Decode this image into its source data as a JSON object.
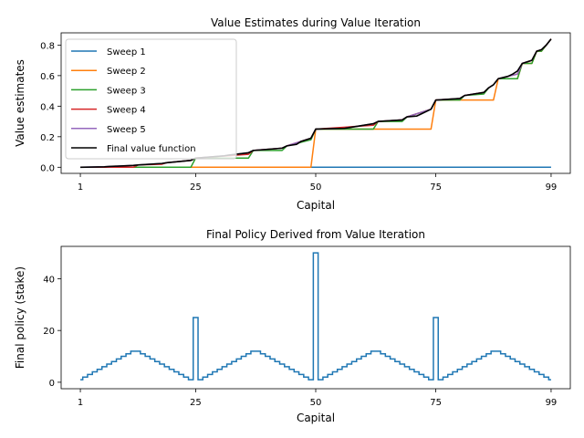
{
  "chart_data": [
    {
      "type": "line",
      "title": "Value Estimates during Value Iteration",
      "xlabel": "Capital",
      "ylabel": "Value estimates",
      "xlim": [
        -3,
        103
      ],
      "ylim": [
        -0.04,
        0.88
      ],
      "xticks": [
        1,
        25,
        50,
        75,
        99
      ],
      "yticks": [
        0.0,
        0.2,
        0.4,
        0.6,
        0.8
      ],
      "ytick_labels": [
        "0.0",
        "0.2",
        "0.4",
        "0.6",
        "0.8"
      ],
      "legend_position": "upper-left",
      "series": [
        {
          "name": "Sweep 1",
          "color": "#1f77b4",
          "x": [
            1,
            99
          ],
          "y": [
            0.0,
            0.0
          ]
        },
        {
          "name": "Sweep 2",
          "color": "#ff7f0e",
          "x": [
            1,
            49,
            50,
            74,
            75,
            87,
            88,
            92,
            93,
            95,
            96,
            97,
            98,
            99
          ],
          "y": [
            0.0,
            0.0,
            0.25,
            0.25,
            0.44,
            0.44,
            0.58,
            0.58,
            0.68,
            0.68,
            0.76,
            0.76,
            0.8,
            0.84
          ]
        },
        {
          "name": "Sweep 3",
          "color": "#2ca02c",
          "x": [
            1,
            24,
            25,
            36,
            37,
            43,
            44,
            49,
            50,
            62,
            63,
            68,
            69,
            74,
            75,
            80,
            81,
            85,
            86,
            87,
            88,
            92,
            93,
            95,
            96,
            97,
            98,
            99
          ],
          "y": [
            0.0,
            0.0,
            0.06,
            0.06,
            0.11,
            0.11,
            0.14,
            0.18,
            0.25,
            0.25,
            0.3,
            0.3,
            0.33,
            0.38,
            0.44,
            0.44,
            0.47,
            0.48,
            0.52,
            0.54,
            0.58,
            0.58,
            0.68,
            0.68,
            0.76,
            0.76,
            0.8,
            0.84
          ]
        },
        {
          "name": "Sweep 4",
          "color": "#d62728",
          "x": [
            1,
            12,
            13,
            18,
            19,
            24,
            25,
            36,
            37,
            43,
            44,
            49,
            50,
            62,
            63,
            68,
            69,
            74,
            75,
            80,
            81,
            85,
            86,
            87,
            88,
            92,
            93,
            95,
            96,
            97,
            98,
            99
          ],
          "y": [
            0.0,
            0.0,
            0.015,
            0.02,
            0.03,
            0.045,
            0.06,
            0.085,
            0.11,
            0.125,
            0.14,
            0.19,
            0.25,
            0.275,
            0.3,
            0.31,
            0.33,
            0.38,
            0.44,
            0.45,
            0.47,
            0.49,
            0.52,
            0.54,
            0.58,
            0.61,
            0.68,
            0.7,
            0.76,
            0.77,
            0.8,
            0.84
          ]
        },
        {
          "name": "Sweep 5",
          "color": "#9467bd",
          "x": [
            1,
            6,
            7,
            12,
            13,
            18,
            19,
            24,
            25,
            31,
            32,
            36,
            37,
            43,
            44,
            49,
            50,
            56,
            57,
            62,
            63,
            68,
            69,
            74,
            75,
            80,
            81,
            85,
            86,
            87,
            88,
            92,
            93,
            95,
            96,
            97,
            98,
            99
          ],
          "y": [
            0.0,
            0.003,
            0.005,
            0.012,
            0.015,
            0.025,
            0.03,
            0.045,
            0.06,
            0.075,
            0.08,
            0.095,
            0.11,
            0.125,
            0.14,
            0.19,
            0.25,
            0.255,
            0.26,
            0.285,
            0.3,
            0.31,
            0.33,
            0.38,
            0.44,
            0.45,
            0.47,
            0.49,
            0.52,
            0.54,
            0.58,
            0.61,
            0.68,
            0.7,
            0.76,
            0.77,
            0.8,
            0.84
          ]
        },
        {
          "name": "Final value function",
          "color": "#000000",
          "x": [
            1,
            6,
            7,
            12,
            13,
            18,
            19,
            24,
            25,
            31,
            32,
            36,
            37,
            43,
            44,
            46,
            47,
            49,
            50,
            56,
            57,
            62,
            63,
            68,
            69,
            71,
            72,
            74,
            75,
            80,
            81,
            85,
            86,
            87,
            88,
            90,
            91,
            92,
            93,
            95,
            96,
            97,
            98,
            99
          ],
          "y": [
            0.0,
            0.003,
            0.005,
            0.012,
            0.015,
            0.025,
            0.03,
            0.045,
            0.06,
            0.075,
            0.08,
            0.095,
            0.11,
            0.125,
            0.14,
            0.15,
            0.17,
            0.19,
            0.25,
            0.255,
            0.26,
            0.285,
            0.3,
            0.31,
            0.33,
            0.335,
            0.35,
            0.38,
            0.44,
            0.45,
            0.47,
            0.49,
            0.52,
            0.54,
            0.58,
            0.595,
            0.61,
            0.63,
            0.68,
            0.7,
            0.76,
            0.77,
            0.8,
            0.84
          ]
        }
      ]
    },
    {
      "type": "step",
      "title": "Final Policy Derived from Value Iteration",
      "xlabel": "Capital",
      "ylabel": "Final policy (stake)",
      "xlim": [
        -3,
        103
      ],
      "ylim": [
        -2.5,
        52.5
      ],
      "xticks": [
        1,
        25,
        50,
        75,
        99
      ],
      "yticks": [
        0,
        20,
        40
      ],
      "color": "#1f77b4",
      "x": [
        1,
        2,
        3,
        4,
        5,
        6,
        7,
        8,
        9,
        10,
        11,
        12,
        13,
        14,
        15,
        16,
        17,
        18,
        19,
        20,
        21,
        22,
        23,
        24,
        25,
        26,
        27,
        28,
        29,
        30,
        31,
        32,
        33,
        34,
        35,
        36,
        37,
        38,
        39,
        40,
        41,
        42,
        43,
        44,
        45,
        46,
        47,
        48,
        49,
        50,
        51,
        52,
        53,
        54,
        55,
        56,
        57,
        58,
        59,
        60,
        61,
        62,
        63,
        64,
        65,
        66,
        67,
        68,
        69,
        70,
        71,
        72,
        73,
        74,
        75,
        76,
        77,
        78,
        79,
        80,
        81,
        82,
        83,
        84,
        85,
        86,
        87,
        88,
        89,
        90,
        91,
        92,
        93,
        94,
        95,
        96,
        97,
        98,
        99
      ],
      "values": [
        1,
        2,
        3,
        4,
        5,
        6,
        7,
        8,
        9,
        10,
        11,
        12,
        12,
        11,
        10,
        9,
        8,
        7,
        6,
        5,
        4,
        3,
        2,
        1,
        25,
        1,
        2,
        3,
        4,
        5,
        6,
        7,
        8,
        9,
        10,
        11,
        12,
        12,
        11,
        10,
        9,
        8,
        7,
        6,
        5,
        4,
        3,
        2,
        1,
        50,
        1,
        2,
        3,
        4,
        5,
        6,
        7,
        8,
        9,
        10,
        11,
        12,
        12,
        11,
        10,
        9,
        8,
        7,
        6,
        5,
        4,
        3,
        2,
        1,
        25,
        1,
        2,
        3,
        4,
        5,
        6,
        7,
        8,
        9,
        10,
        11,
        12,
        12,
        11,
        10,
        9,
        8,
        7,
        6,
        5,
        4,
        3,
        2,
        1
      ]
    }
  ]
}
